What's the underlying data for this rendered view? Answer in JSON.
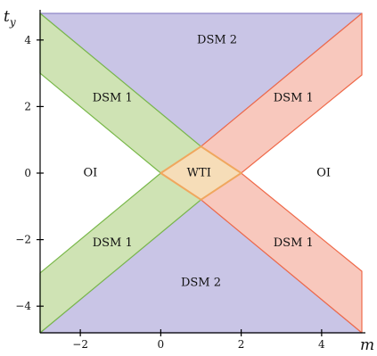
{
  "axes": {
    "x_label": "m",
    "y_label_base": "t",
    "y_label_sub": "y",
    "xlim": [
      -3,
      5
    ],
    "ylim": [
      -4.8,
      4.8
    ],
    "x_ticks": [
      {
        "value": -2,
        "label": "−2"
      },
      {
        "value": 0,
        "label": "0"
      },
      {
        "value": 2,
        "label": "2"
      },
      {
        "value": 4,
        "label": "4"
      }
    ],
    "y_ticks": [
      {
        "value": 4,
        "label": "4"
      },
      {
        "value": 2,
        "label": "2"
      },
      {
        "value": 0,
        "label": "0"
      },
      {
        "value": -2,
        "label": "−2"
      },
      {
        "value": -4,
        "label": "−4"
      }
    ]
  },
  "colors": {
    "dsm2_fill": "#c9c5e6",
    "dsm2_stroke": "#8f88c8",
    "green_fill": "#cfe3b4",
    "green_stroke": "#79b84a",
    "red_fill": "#f8c8bd",
    "red_stroke": "#ef6a4a",
    "wti_fill": "#f6ddb8",
    "wti_stroke": "#f0a75e"
  },
  "regions": [
    {
      "id": "dsm2-top",
      "label": "DSM 2",
      "label_at": [
        1.4,
        4.0
      ],
      "kind": "dsm2",
      "points": [
        [
          -3,
          4.8
        ],
        [
          5,
          4.8
        ],
        [
          1,
          0.8
        ]
      ]
    },
    {
      "id": "dsm2-bottom",
      "label": "DSM 2",
      "label_at": [
        1.0,
        -3.3
      ],
      "kind": "dsm2",
      "points": [
        [
          -3,
          -4.8
        ],
        [
          5,
          -4.8
        ],
        [
          1,
          -0.8
        ]
      ]
    },
    {
      "id": "dsm1-upper-left",
      "label": "DSM 1",
      "label_at": [
        -1.2,
        2.25
      ],
      "kind": "green",
      "points": [
        [
          -3,
          4.8
        ],
        [
          1,
          0.8
        ],
        [
          0,
          0
        ],
        [
          -3,
          3.0
        ]
      ]
    },
    {
      "id": "dsm1-lower-left",
      "label": "DSM 1",
      "label_at": [
        -1.2,
        -2.1
      ],
      "kind": "green",
      "points": [
        [
          -3,
          -4.8
        ],
        [
          1,
          -0.8
        ],
        [
          0,
          0
        ],
        [
          -3,
          -3.0
        ]
      ]
    },
    {
      "id": "dsm1-upper-right",
      "label": "DSM 1",
      "label_at": [
        3.3,
        2.25
      ],
      "kind": "red",
      "points": [
        [
          5,
          4.8
        ],
        [
          1,
          0.8
        ],
        [
          2,
          0
        ],
        [
          5,
          2.95
        ]
      ]
    },
    {
      "id": "dsm1-lower-right",
      "label": "DSM 1",
      "label_at": [
        3.3,
        -2.1
      ],
      "kind": "red",
      "points": [
        [
          5,
          -4.8
        ],
        [
          1,
          -0.8
        ],
        [
          2,
          0
        ],
        [
          5,
          -2.95
        ]
      ]
    },
    {
      "id": "wti",
      "label": "WTI",
      "label_at": [
        0.95,
        0.0
      ],
      "kind": "wti",
      "points": [
        [
          0,
          0
        ],
        [
          1,
          0.8
        ],
        [
          2,
          0
        ],
        [
          1,
          -0.8
        ]
      ]
    }
  ],
  "free_labels": [
    {
      "id": "oi-left",
      "label": "OI",
      "label_at": [
        -1.75,
        0.0
      ]
    },
    {
      "id": "oi-right",
      "label": "OI",
      "label_at": [
        4.05,
        0.0
      ]
    }
  ]
}
